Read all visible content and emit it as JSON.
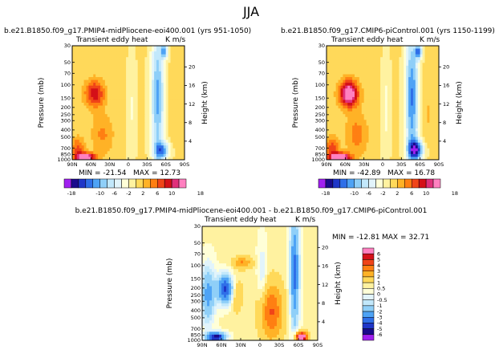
{
  "page_title": "JJA",
  "chart_data": [
    {
      "type": "heatmap",
      "id": "left",
      "run_title": "b.e21.B1850.f09_g17.PMIP4-midPliocene-eoi400.001 (yrs 951-1050)",
      "variable": "Transient eddy heat",
      "units": "K m/s",
      "xlabel": "",
      "ylabel": "Pressure (mb)",
      "ylabel_right": "Height (km)",
      "x_ticks": [
        "90N",
        "60N",
        "30N",
        "0",
        "30S",
        "60S",
        "90S"
      ],
      "y_ticks": [
        "30",
        "50",
        "70",
        "100",
        "150",
        "200",
        "250",
        "300",
        "400",
        "500",
        "700",
        "850",
        "1000"
      ],
      "height_ticks": [
        "20",
        "16",
        "12",
        "8",
        "4"
      ],
      "min_label": "MIN = -21.54",
      "max_label": "MAX = 12.73",
      "min": -21.54,
      "max": 12.73,
      "levels": [
        -18,
        -16,
        -14,
        -12,
        -10,
        -8,
        -6,
        -4,
        -2,
        0,
        2,
        4,
        6,
        8,
        10,
        12,
        14,
        16,
        18
      ],
      "colorbar_labels": [
        "-18",
        "-10",
        "-6",
        "-2",
        "2",
        "6",
        "10",
        "18"
      ]
    },
    {
      "type": "heatmap",
      "id": "right",
      "run_title": "b.e21.B1850.f09_g17.CMIP6-piControl.001 (yrs 1150-1199)",
      "variable": "Transient eddy heat",
      "units": "K m/s",
      "xlabel": "",
      "ylabel": "Pressure (mb)",
      "ylabel_right": "Height (km)",
      "x_ticks": [
        "90N",
        "60N",
        "30N",
        "0",
        "30S",
        "60S",
        "90S"
      ],
      "y_ticks": [
        "30",
        "50",
        "70",
        "100",
        "150",
        "200",
        "250",
        "300",
        "400",
        "500",
        "700",
        "850",
        "1000"
      ],
      "height_ticks": [
        "20",
        "16",
        "12",
        "8",
        "4"
      ],
      "min_label": "MIN = -42.89",
      "max_label": "MAX = 16.78",
      "min": -42.89,
      "max": 16.78,
      "levels": [
        -18,
        -16,
        -14,
        -12,
        -10,
        -8,
        -6,
        -4,
        -2,
        0,
        2,
        4,
        6,
        8,
        10,
        12,
        14,
        16,
        18
      ],
      "colorbar_labels": [
        "-18",
        "-10",
        "-6",
        "-2",
        "2",
        "6",
        "10",
        "18"
      ]
    },
    {
      "type": "heatmap",
      "id": "diff",
      "run_title": "b.e21.B1850.f09_g17.PMIP4-midPliocene-eoi400.001 - b.e21.B1850.f09_g17.CMIP6-piControl.001",
      "variable": "Transient eddy heat",
      "units": "K m/s",
      "xlabel": "",
      "ylabel": "Pressure (mb)",
      "ylabel_right": "Height (km)",
      "x_ticks": [
        "90N",
        "60N",
        "30N",
        "0",
        "30S",
        "60S",
        "90S"
      ],
      "y_ticks": [
        "30",
        "50",
        "70",
        "100",
        "150",
        "200",
        "250",
        "300",
        "400",
        "500",
        "700",
        "850",
        "1000"
      ],
      "height_ticks": [
        "20",
        "16",
        "12",
        "8",
        "4"
      ],
      "min_label": "MIN = -12.81",
      "max_label": "MAX = 32.71",
      "min": -12.81,
      "max": 32.71,
      "levels": [
        -6,
        -5,
        -4,
        -3,
        -2,
        -1,
        -0.5,
        0,
        0.5,
        1,
        2,
        3,
        4,
        5,
        6
      ],
      "colorbar_labels": [
        "6",
        "5",
        "4",
        "3",
        "2",
        "1",
        "0.5",
        "0",
        "-0.5",
        "-1",
        "-2",
        "-3",
        "-4",
        "-5",
        "-6"
      ]
    }
  ],
  "colors": {
    "cmap_main": [
      "#a020f0",
      "#1a0a8c",
      "#1f36c8",
      "#2f6fe8",
      "#4ea3f5",
      "#8fcff8",
      "#c2e8fb",
      "#e2f4fb",
      "#ffffd8",
      "#fff2a0",
      "#ffd95a",
      "#ffb226",
      "#ff7f12",
      "#f04418",
      "#d41018",
      "#e0307a",
      "#ff80c0"
    ],
    "cmap_diff": [
      "#a020f0",
      "#1a0a8c",
      "#1f36c8",
      "#2f6fe8",
      "#4ea3f5",
      "#8fcff8",
      "#c2e8fb",
      "#e2f4fb",
      "#ffffd8",
      "#fff2a0",
      "#ffd95a",
      "#ffb226",
      "#ff7f12",
      "#f04418",
      "#d41018",
      "#ff80c0"
    ]
  }
}
